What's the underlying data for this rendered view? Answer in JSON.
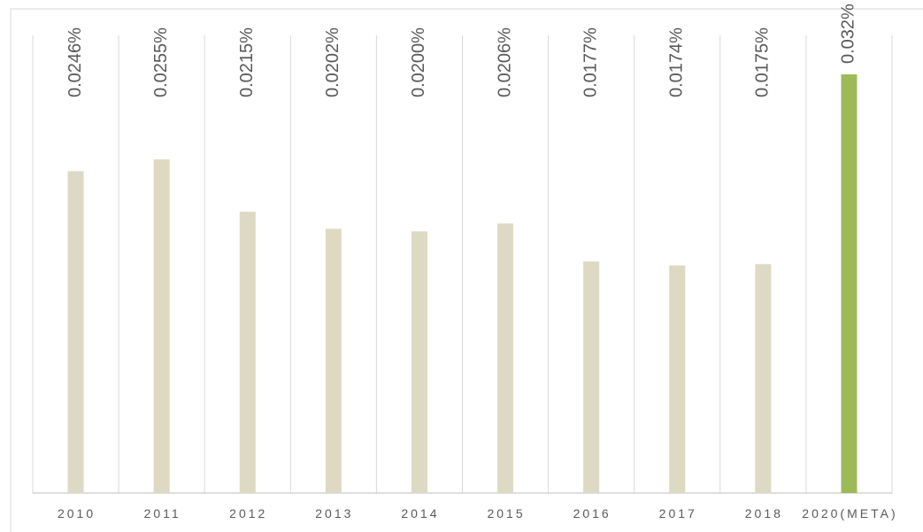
{
  "chart_data": {
    "type": "bar",
    "categories": [
      "2010",
      "2011",
      "2012",
      "2013",
      "2014",
      "2015",
      "2016",
      "2017",
      "2018",
      "2020(META)"
    ],
    "values": [
      0.0246,
      0.0255,
      0.0215,
      0.0202,
      0.02,
      0.0206,
      0.0177,
      0.0174,
      0.0175,
      0.032
    ],
    "value_labels": [
      "0.0246%",
      "0.0255%",
      "0.0215%",
      "0.0202%",
      "0.0200%",
      "0.0206%",
      "0.0177%",
      "0.0174%",
      "0.0175%",
      "0.032%"
    ],
    "colors": [
      "#ddd9c3",
      "#ddd9c3",
      "#ddd9c3",
      "#ddd9c3",
      "#ddd9c3",
      "#ddd9c3",
      "#ddd9c3",
      "#ddd9c3",
      "#ddd9c3",
      "#9bbb59"
    ]
  }
}
